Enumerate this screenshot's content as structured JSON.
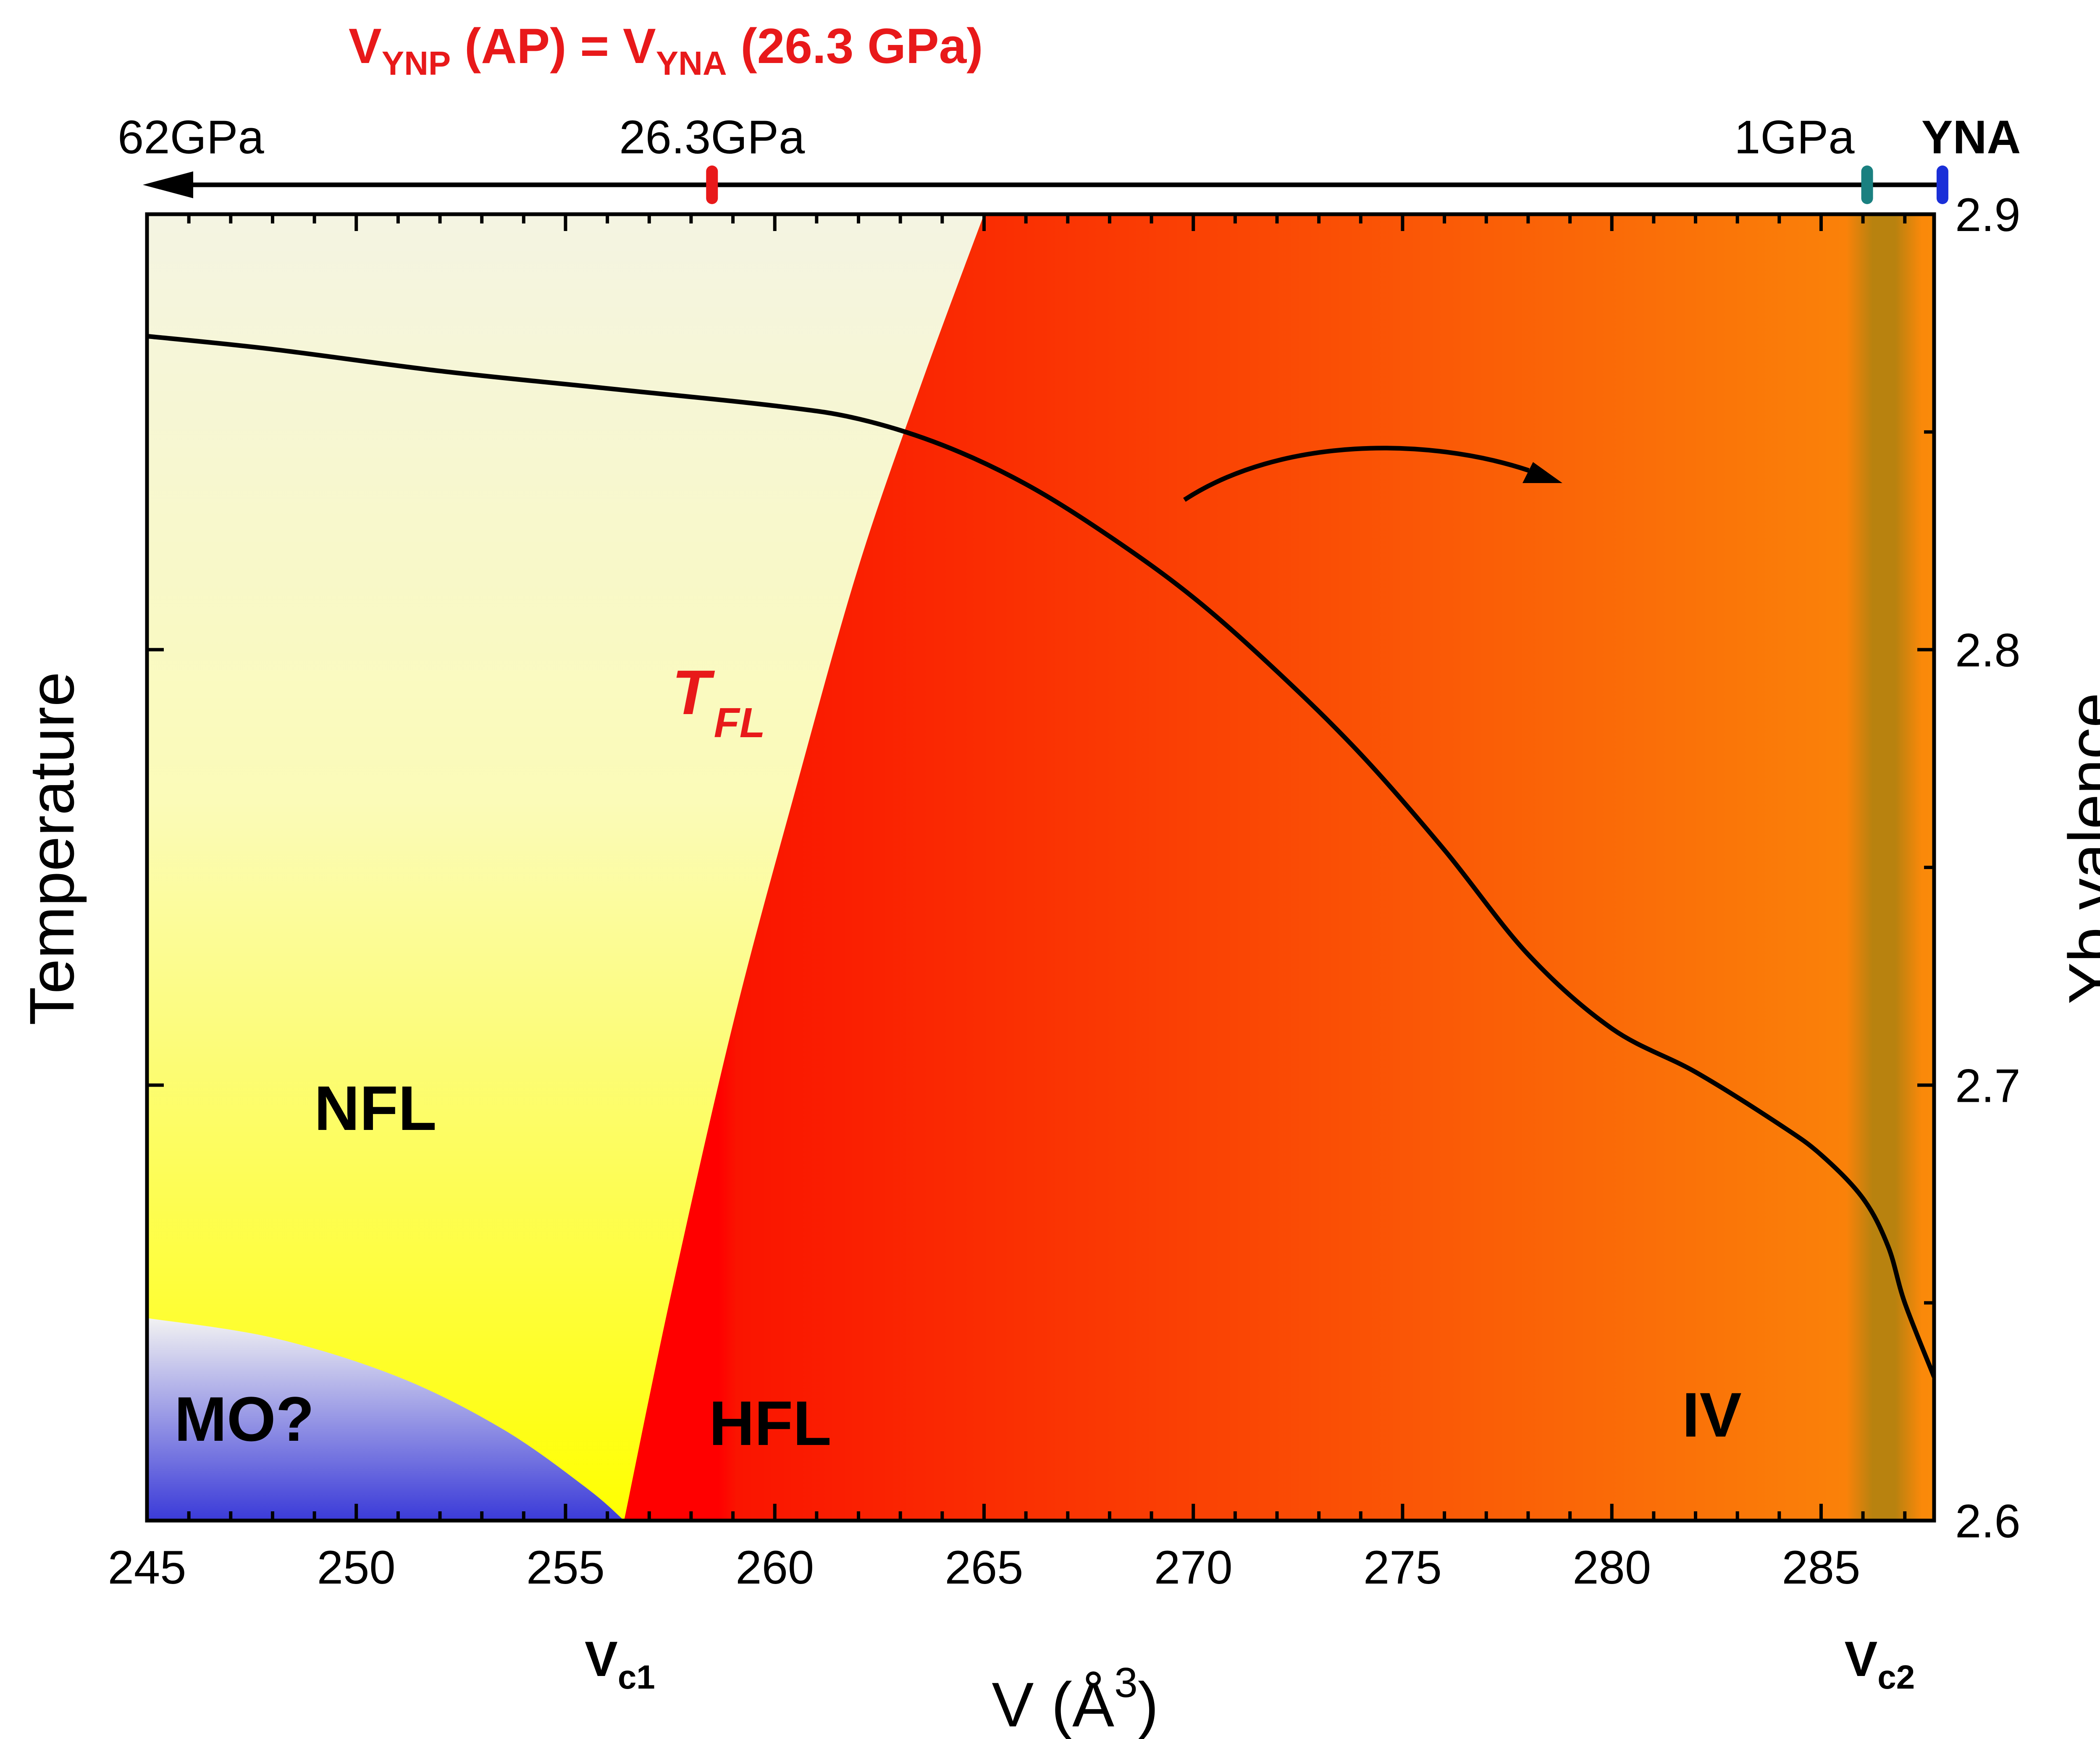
{
  "chart_data": {
    "type": "area",
    "title": "",
    "xlabel": "V (Å",
    "xlabel_sup": "3",
    "xlabel_close": ")",
    "ylabel_left": "Temperature",
    "ylabel_right": "Yb valence",
    "xlim": [
      245,
      287.7
    ],
    "y_right_lim": [
      2.6,
      2.9
    ],
    "x_ticks": [
      245,
      250,
      255,
      260,
      265,
      270,
      275,
      280,
      285
    ],
    "x_tick_labels": [
      "245",
      "250",
      "255",
      "260",
      "265",
      "270",
      "275",
      "280",
      "285"
    ],
    "y_right_ticks": [
      2.6,
      2.7,
      2.8,
      2.9
    ],
    "y_right_tick_labels": [
      "2.6",
      "2.7",
      "2.8",
      "2.9"
    ],
    "regions": {
      "nfl": "NFL",
      "mo": "MO?",
      "hfl": "HFL",
      "iv": "IV"
    },
    "t_fl": {
      "main": "T",
      "sub": "FL"
    },
    "vc1": {
      "main": "V",
      "sub": "c1",
      "x": 256.5
    },
    "vc2": {
      "main": "V",
      "sub": "c2",
      "x": 286.5
    },
    "valence_curve": {
      "name": "Yb valence",
      "x": [
        245,
        248,
        252,
        256,
        260,
        262,
        264,
        266,
        268,
        270,
        272,
        274,
        276,
        278,
        280,
        282,
        284,
        285,
        286,
        286.6,
        287,
        287.7
      ],
      "y": [
        2.872,
        2.869,
        2.864,
        2.86,
        2.856,
        2.853,
        2.847,
        2.838,
        2.826,
        2.812,
        2.795,
        2.776,
        2.754,
        2.73,
        2.713,
        2.703,
        2.691,
        2.684,
        2.674,
        2.663,
        2.65,
        2.633
      ]
    },
    "tfl_boundary": {
      "name": "T_FL",
      "x": [
        256.4,
        257.5,
        259,
        260.5,
        262,
        263.5,
        265
      ],
      "frac_height": [
        0.0,
        0.17,
        0.38,
        0.56,
        0.73,
        0.87,
        1.0
      ]
    },
    "mo_boundary": {
      "name": "MO",
      "x": [
        245,
        248,
        251,
        253.5,
        255.5,
        256.4
      ],
      "frac_height": [
        0.155,
        0.14,
        0.11,
        0.07,
        0.025,
        0.0
      ]
    },
    "top_axis": {
      "left_label": "62GPa",
      "markers": [
        {
          "label": "26.3GPa",
          "x": 258.5,
          "color": "#e8191a"
        },
        {
          "label": "1GPa",
          "x": 286.1,
          "color": "#1a8080"
        },
        {
          "label": "YNA",
          "x": 287.9,
          "color": "#1a2fd8"
        }
      ]
    },
    "header": {
      "p1": "V",
      "s1": "YNP",
      "p2": " (AP) = V",
      "s2": "YNA",
      "p3": " (26.3 GPa)",
      "color": "#e8191a"
    },
    "colors": {
      "hfl": "#ff0000",
      "iv": "#fa8a0a",
      "nfl_top": "#f4f4e2",
      "nfl_bottom": "#ffff00",
      "mo_top": "#f2f2f2",
      "mo_bottom": "#3a3ad8",
      "vc2_band": "#b8820f"
    }
  }
}
